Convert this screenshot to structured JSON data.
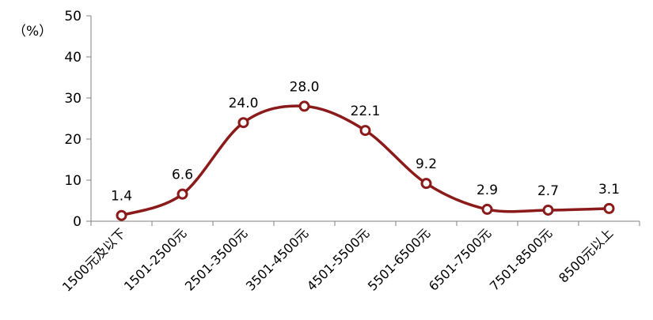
{
  "chart_data": {
    "type": "line",
    "smooth": true,
    "unit_label": "（%）",
    "categories": [
      "1500元及以下",
      "1501-2500元",
      "2501-3500元",
      "3501-4500元",
      "4501-5500元",
      "5501-6500元",
      "6501-7500元",
      "7501-8500元",
      "8500元以上"
    ],
    "values": [
      1.4,
      6.6,
      24.0,
      28.0,
      22.1,
      9.2,
      2.9,
      2.7,
      3.1
    ],
    "value_labels": [
      "1.4",
      "6.6",
      "24.0",
      "28.0",
      "22.1",
      "9.2",
      "2.9",
      "2.7",
      "3.1"
    ],
    "yticks": [
      "0",
      "10",
      "20",
      "30",
      "40",
      "50"
    ],
    "ylim": [
      0,
      50
    ],
    "grid": false,
    "legend": "none",
    "colors": {
      "series": "#8B1A1A",
      "marker_fill": "#ffffff",
      "axis": "#808080"
    }
  }
}
